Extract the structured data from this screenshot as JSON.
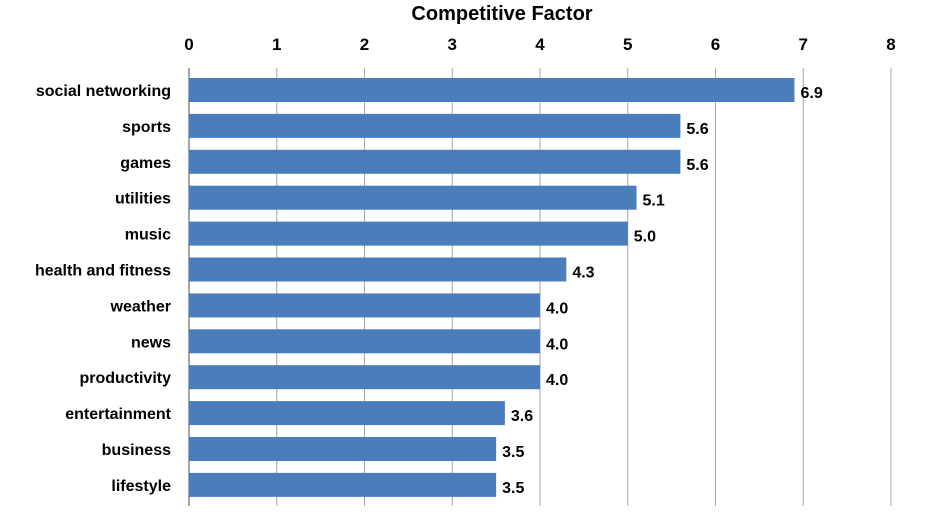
{
  "chart_data": {
    "type": "bar",
    "orientation": "horizontal",
    "title": "",
    "xlabel": "Competitive Factor",
    "ylabel": "",
    "xaxis_position": "top",
    "xlim": [
      0,
      8
    ],
    "xticks": [
      "0",
      "1",
      "2",
      "3",
      "4",
      "5",
      "6",
      "7",
      "8"
    ],
    "grid": true,
    "legend": "none",
    "bar_color": "#4a7ebb",
    "grid_color": "#a6a6a6",
    "categories": [
      "social networking",
      "sports",
      "games",
      "utilities",
      "music",
      "health and fitness",
      "weather",
      "news",
      "productivity",
      "entertainment",
      "business",
      "lifestyle"
    ],
    "values": [
      6.9,
      5.6,
      5.6,
      5.1,
      5.0,
      4.3,
      4.0,
      4.0,
      4.0,
      3.6,
      3.5,
      3.5
    ],
    "data_labels": [
      "6.9",
      "5.6",
      "5.6",
      "5.1",
      "5.0",
      "4.3",
      "4.0",
      "4.0",
      "4.0",
      "3.6",
      "3.5",
      "3.5"
    ]
  }
}
